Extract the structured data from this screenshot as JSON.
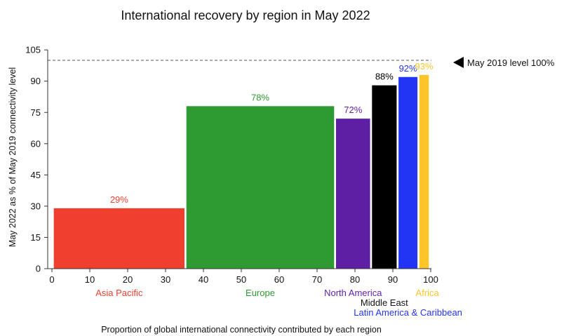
{
  "chart_data": {
    "type": "bar",
    "title": "International recovery by region in May 2022",
    "xlabel": "Proportion of global international connectivity contributed by each region",
    "ylabel": "May 2022 as % of May 2019 connectivity level",
    "xlim": [
      0,
      100
    ],
    "ylim": [
      0,
      105
    ],
    "x_ticks": [
      0,
      10,
      20,
      30,
      40,
      50,
      60,
      70,
      80,
      90,
      100
    ],
    "y_ticks": [
      0,
      15,
      30,
      45,
      60,
      75,
      90,
      105
    ],
    "grid": false,
    "reference_line": {
      "value": 100,
      "label": "May 2019 level 100%"
    },
    "series": [
      {
        "name": "Asia Pacific",
        "x_start": 0.5,
        "x_end": 35,
        "value": 29,
        "label": "29%",
        "color": "#f03e2f"
      },
      {
        "name": "Europe",
        "x_start": 35.5,
        "x_end": 74.5,
        "value": 78,
        "label": "78%",
        "color": "#2e9a32"
      },
      {
        "name": "North America",
        "x_start": 75,
        "x_end": 84,
        "value": 72,
        "label": "72%",
        "color": "#5e1fa4"
      },
      {
        "name": "Middle East",
        "x_start": 84.5,
        "x_end": 91,
        "value": 88,
        "label": "88%",
        "color": "#000000"
      },
      {
        "name": "Latin America & Caribbean",
        "x_start": 91.5,
        "x_end": 96.5,
        "value": 92,
        "label": "92%",
        "color": "#2235f5"
      },
      {
        "name": "Africa",
        "x_start": 97,
        "x_end": 99.5,
        "value": 93,
        "label": "93%",
        "color": "#fdc52a"
      }
    ]
  }
}
